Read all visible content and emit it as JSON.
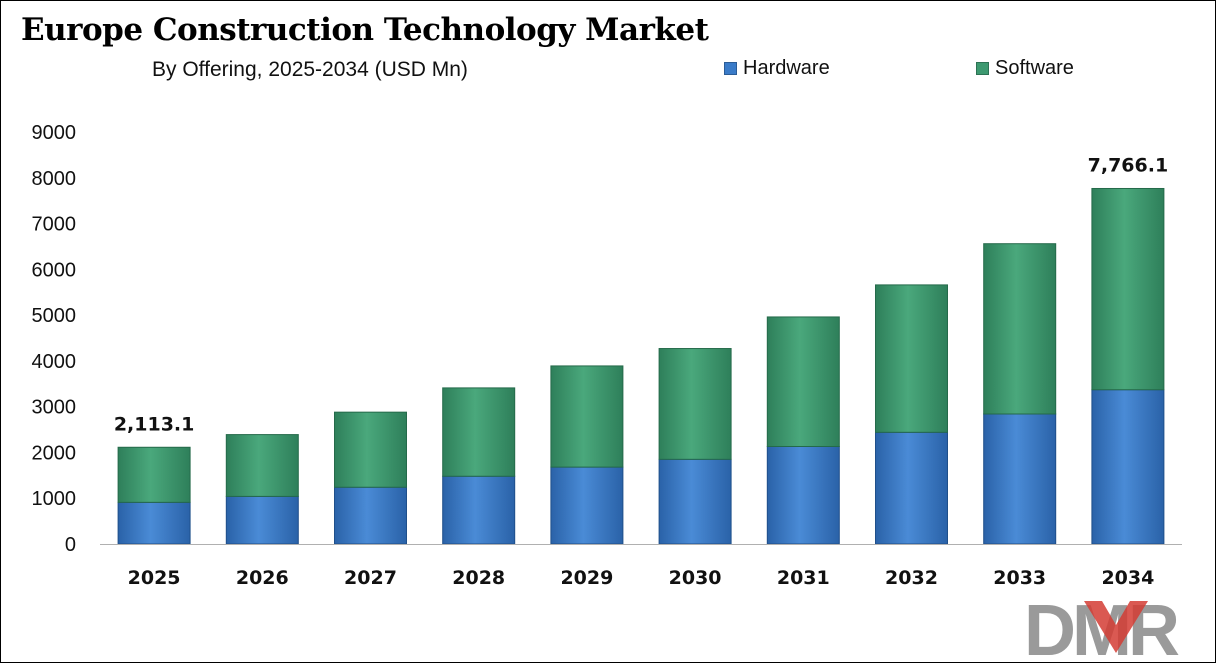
{
  "title": "Europe Construction Technology Market",
  "subtitle": "By Offering, 2025-2034 (USD Mn)",
  "legend": [
    {
      "label": "Hardware",
      "color": "#3a7bc8"
    },
    {
      "label": "Software",
      "color": "#3d9970"
    }
  ],
  "logo_text": "DMR",
  "chart_data": {
    "type": "bar",
    "stacked": true,
    "title": "Europe Construction Technology Market",
    "subtitle": "By Offering, 2025-2034 (USD Mn)",
    "categories": [
      "2025",
      "2026",
      "2027",
      "2028",
      "2029",
      "2030",
      "2031",
      "2032",
      "2033",
      "2034"
    ],
    "series": [
      {
        "name": "Hardware",
        "values": [
          910,
          1040,
          1240,
          1480,
          1680,
          1850,
          2130,
          2440,
          2840,
          3370
        ]
      },
      {
        "name": "Software",
        "values": [
          1203.1,
          1350,
          1640,
          1930,
          2210,
          2420,
          2830,
          3220,
          3720,
          4396.1
        ]
      }
    ],
    "totals": [
      2113.1,
      2390,
      2880,
      3410,
      3890,
      4270,
      4960,
      5660,
      6560,
      7766.1
    ],
    "data_labels": [
      {
        "category": "2025",
        "text": "2,113.1"
      },
      {
        "category": "2034",
        "text": "7,766.1"
      }
    ],
    "yticks": [
      0,
      1000,
      2000,
      3000,
      4000,
      5000,
      6000,
      7000,
      8000,
      9000
    ],
    "ylim": [
      0,
      9000
    ],
    "xlabel": "",
    "ylabel": "",
    "grid": false,
    "legend_position": "top-right"
  }
}
